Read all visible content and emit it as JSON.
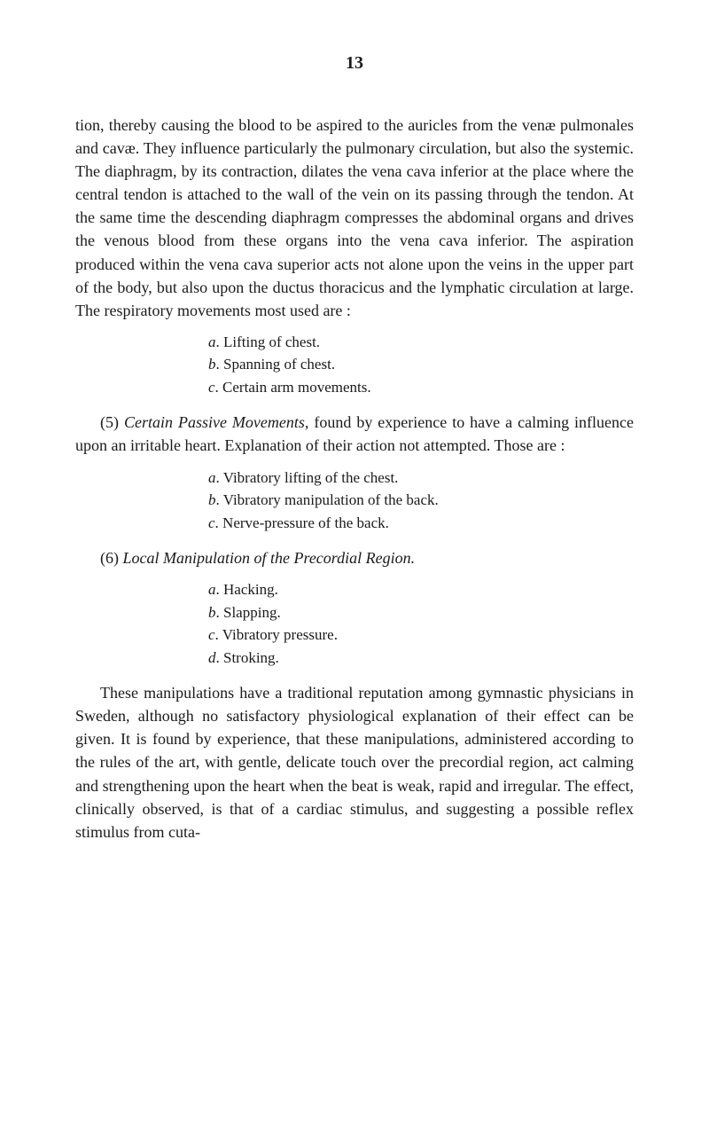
{
  "pageNumber": "13",
  "paragraph1": "tion, thereby causing the blood to be aspired to the auricles from the venæ pulmonales and cavæ. They influence particularly the pulmonary circulation, but also the systemic. The diaphragm, by its contraction, dilates the vena cava inferior at the place where the central tendon is attached to the wall of the vein on its passing through the tendon. At the same time the descending diaphragm compresses the abdominal organs and drives the venous blood from these organs into the vena cava inferior. The aspiration produced within the vena cava superior acts not alone upon the veins in the upper part of the body, but also upon the ductus thoracicus and the lymphatic circulation at large. The respiratory movements most used are :",
  "list1": {
    "a": "a. Lifting of chest.",
    "b": "b. Spanning of chest.",
    "c": "c. Certain arm movements."
  },
  "section5": {
    "num": "(5)",
    "title": "Certain Passive Movements,",
    "rest": " found by experience to have a calming influence upon an irritable heart. Explanation of their action not attempted. Those are :"
  },
  "list2": {
    "a": "a. Vibratory lifting of the chest.",
    "b": "b. Vibratory manipulation of the back.",
    "c": "c. Nerve-pressure of the back."
  },
  "section6": {
    "num": "(6)",
    "title": "Local Manipulation of the Precordial Region."
  },
  "list3": {
    "a": "a. Hacking.",
    "b": "b. Slapping.",
    "c": "c. Vibratory pressure.",
    "d": "d. Stroking."
  },
  "paragraph2": "These manipulations have a traditional reputation among gymnastic physicians in Sweden, although no satisfactory physiological explanation of their effect can be given. It is found by experience, that these manipulations, administered according to the rules of the art, with gentle, delicate touch over the precordial region, act calming and strengthening upon the heart when the beat is weak, rapid and irregular. The ef­fect, clinically observed, is that of a cardiac stimulus, and suggesting a possible reflex stimulus from cuta-"
}
